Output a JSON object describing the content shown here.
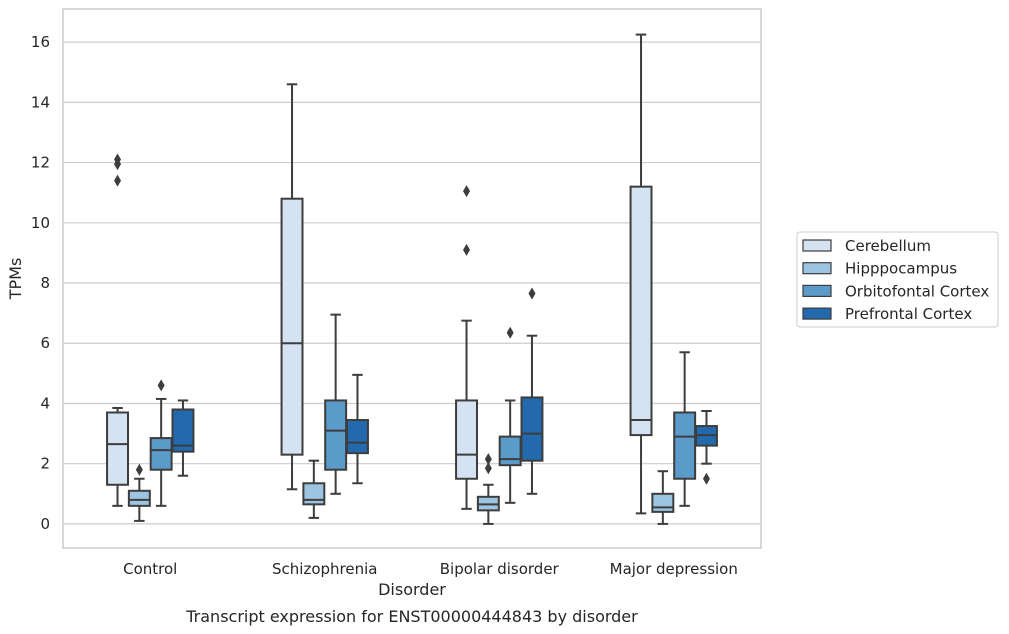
{
  "chart_data": {
    "type": "box",
    "xlabel": "Disorder",
    "ylabel": "TPMs",
    "caption": "Transcript expression for ENST00000444843 by disorder",
    "ylim": [
      -0.8,
      17.1
    ],
    "yticks": [
      0,
      2,
      4,
      6,
      8,
      10,
      12,
      14,
      16
    ],
    "grid": "horizontal",
    "legend_position": "right",
    "categories": [
      "Control",
      "Schizophrenia",
      "Bipolar disorder",
      "Major depression"
    ],
    "series": [
      {
        "name": "Cerebellum",
        "color": "#d4e2f1",
        "boxes": [
          {
            "whisker_low": 0.6,
            "q1": 1.3,
            "median": 2.65,
            "q3": 3.7,
            "whisker_high": 3.85,
            "outliers": [
              11.4,
              11.95,
              12.1
            ]
          },
          {
            "whisker_low": 1.15,
            "q1": 2.3,
            "median": 6.0,
            "q3": 10.8,
            "whisker_high": 14.6,
            "outliers": []
          },
          {
            "whisker_low": 0.5,
            "q1": 1.5,
            "median": 2.3,
            "q3": 4.1,
            "whisker_high": 6.75,
            "outliers": [
              9.1,
              11.05
            ]
          },
          {
            "whisker_low": 0.35,
            "q1": 2.95,
            "median": 3.45,
            "q3": 11.2,
            "whisker_high": 16.25,
            "outliers": []
          }
        ]
      },
      {
        "name": "Hipppocampus",
        "color": "#9dc4e0",
        "boxes": [
          {
            "whisker_low": 0.1,
            "q1": 0.6,
            "median": 0.8,
            "q3": 1.1,
            "whisker_high": 1.5,
            "outliers": [
              1.8
            ]
          },
          {
            "whisker_low": 0.2,
            "q1": 0.65,
            "median": 0.8,
            "q3": 1.35,
            "whisker_high": 2.1,
            "outliers": []
          },
          {
            "whisker_low": 0.0,
            "q1": 0.45,
            "median": 0.65,
            "q3": 0.9,
            "whisker_high": 1.3,
            "outliers": [
              1.85,
              2.15
            ]
          },
          {
            "whisker_low": 0.0,
            "q1": 0.4,
            "median": 0.55,
            "q3": 1.0,
            "whisker_high": 1.75,
            "outliers": []
          }
        ]
      },
      {
        "name": "Orbitofontal Cortex",
        "color": "#5a9bc9",
        "boxes": [
          {
            "whisker_low": 0.6,
            "q1": 1.8,
            "median": 2.45,
            "q3": 2.85,
            "whisker_high": 4.15,
            "outliers": [
              4.6
            ]
          },
          {
            "whisker_low": 1.0,
            "q1": 1.8,
            "median": 3.1,
            "q3": 4.1,
            "whisker_high": 6.95,
            "outliers": []
          },
          {
            "whisker_low": 0.7,
            "q1": 1.95,
            "median": 2.15,
            "q3": 2.9,
            "whisker_high": 4.1,
            "outliers": [
              6.35
            ]
          },
          {
            "whisker_low": 0.6,
            "q1": 1.5,
            "median": 2.9,
            "q3": 3.7,
            "whisker_high": 5.7,
            "outliers": []
          }
        ]
      },
      {
        "name": "Prefrontal Cortex",
        "color": "#2369ad",
        "boxes": [
          {
            "whisker_low": 1.6,
            "q1": 2.4,
            "median": 2.6,
            "q3": 3.8,
            "whisker_high": 4.1,
            "outliers": []
          },
          {
            "whisker_low": 1.35,
            "q1": 2.35,
            "median": 2.7,
            "q3": 3.45,
            "whisker_high": 4.95,
            "outliers": []
          },
          {
            "whisker_low": 1.0,
            "q1": 2.1,
            "median": 3.0,
            "q3": 4.2,
            "whisker_high": 6.25,
            "outliers": [
              7.65
            ]
          },
          {
            "whisker_low": 2.0,
            "q1": 2.6,
            "median": 2.95,
            "q3": 3.25,
            "whisker_high": 3.75,
            "outliers": [
              1.5
            ]
          }
        ]
      }
    ]
  }
}
